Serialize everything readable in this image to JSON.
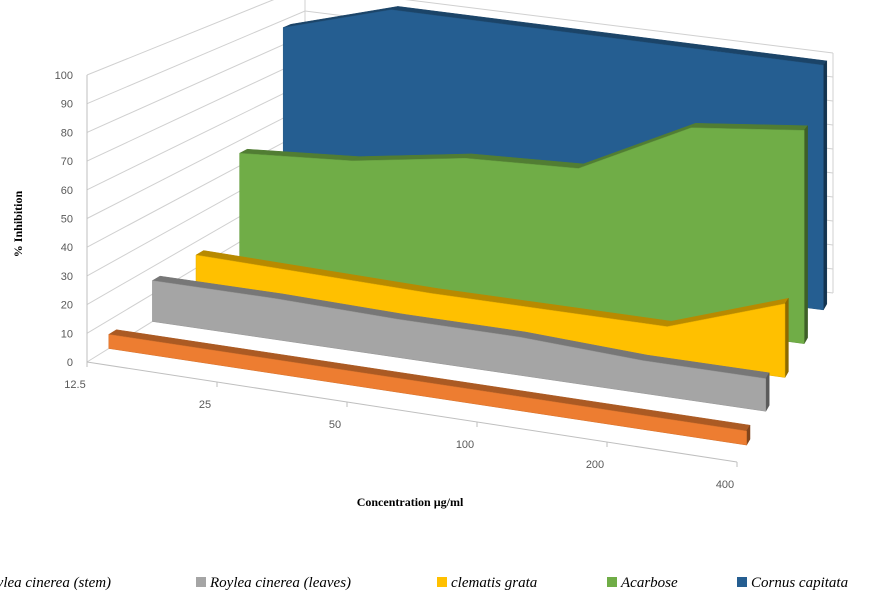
{
  "chart_data": {
    "type": "area",
    "subtype": "3d-area",
    "title": "",
    "xlabel": "Concentration µg/ml",
    "ylabel": "% Inhibition",
    "ylim": [
      0,
      100
    ],
    "yticks": [
      "0",
      "10",
      "20",
      "30",
      "40",
      "50",
      "60",
      "70",
      "80",
      "90",
      "100"
    ],
    "categories": [
      "12.5",
      "25",
      "50",
      "100",
      "200",
      "400"
    ],
    "grid": true,
    "legend_position": "bottom",
    "series": [
      {
        "name": "Roylea cinerea (stem)",
        "values": [
          5,
          5,
          5,
          5,
          5,
          5
        ],
        "color": "#ED7D31"
      },
      {
        "name": "Roylea cinerea (leaves)",
        "values": [
          15,
          15,
          14,
          14,
          12,
          12
        ],
        "color": "#A5A5A5"
      },
      {
        "name": "clematis grata",
        "values": [
          15,
          14,
          13,
          13,
          13,
          28
        ],
        "color": "#FFC000"
      },
      {
        "name": "Acarbose",
        "values": [
          45,
          48,
          55,
          57,
          79,
          84
        ],
        "color": "#70AD47"
      },
      {
        "name": "Cornus capitata",
        "values": [
          87,
          100,
          100,
          100,
          100,
          100
        ],
        "color": "#255E91"
      }
    ]
  }
}
